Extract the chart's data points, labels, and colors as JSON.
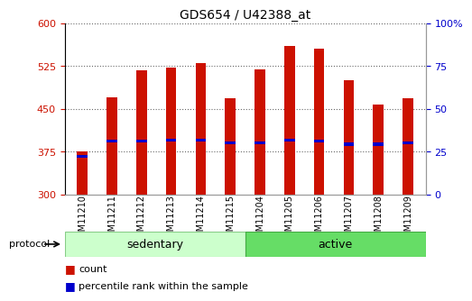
{
  "title": "GDS654 / U42388_at",
  "samples": [
    "GSM11210",
    "GSM11211",
    "GSM11212",
    "GSM11213",
    "GSM11214",
    "GSM11215",
    "GSM11204",
    "GSM11205",
    "GSM11206",
    "GSM11207",
    "GSM11208",
    "GSM11209"
  ],
  "bar_heights": [
    375,
    470,
    518,
    522,
    530,
    468,
    520,
    560,
    555,
    500,
    458,
    468
  ],
  "percentile_values": [
    367,
    393,
    393,
    395,
    395,
    390,
    390,
    395,
    393,
    388,
    388,
    390
  ],
  "bar_color": "#cc1100",
  "percentile_color": "#0000cc",
  "ylim_left": [
    300,
    600
  ],
  "ylim_right": [
    0,
    100
  ],
  "yticks_left": [
    300,
    375,
    450,
    525,
    600
  ],
  "yticks_right": [
    0,
    25,
    50,
    75,
    100
  ],
  "right_tick_labels": [
    "0",
    "25",
    "50",
    "75",
    "100%"
  ],
  "groups": [
    {
      "label": "sedentary",
      "start": 0,
      "end": 5,
      "facecolor": "#ccffcc",
      "edgecolor": "#88cc88"
    },
    {
      "label": "active",
      "start": 6,
      "end": 11,
      "facecolor": "#66dd66",
      "edgecolor": "#44aa44"
    }
  ],
  "protocol_label": "protocol",
  "legend_count": "count",
  "legend_percentile": "percentile rank within the sample",
  "bar_color_legend": "#cc1100",
  "percentile_color_legend": "#0000cc",
  "bar_width": 0.35,
  "grid_color": "black",
  "grid_linestyle": "dotted",
  "grid_linewidth": 0.8,
  "title_fontsize": 10,
  "tick_fontsize": 8,
  "label_fontsize": 8,
  "xtick_fontsize": 7
}
